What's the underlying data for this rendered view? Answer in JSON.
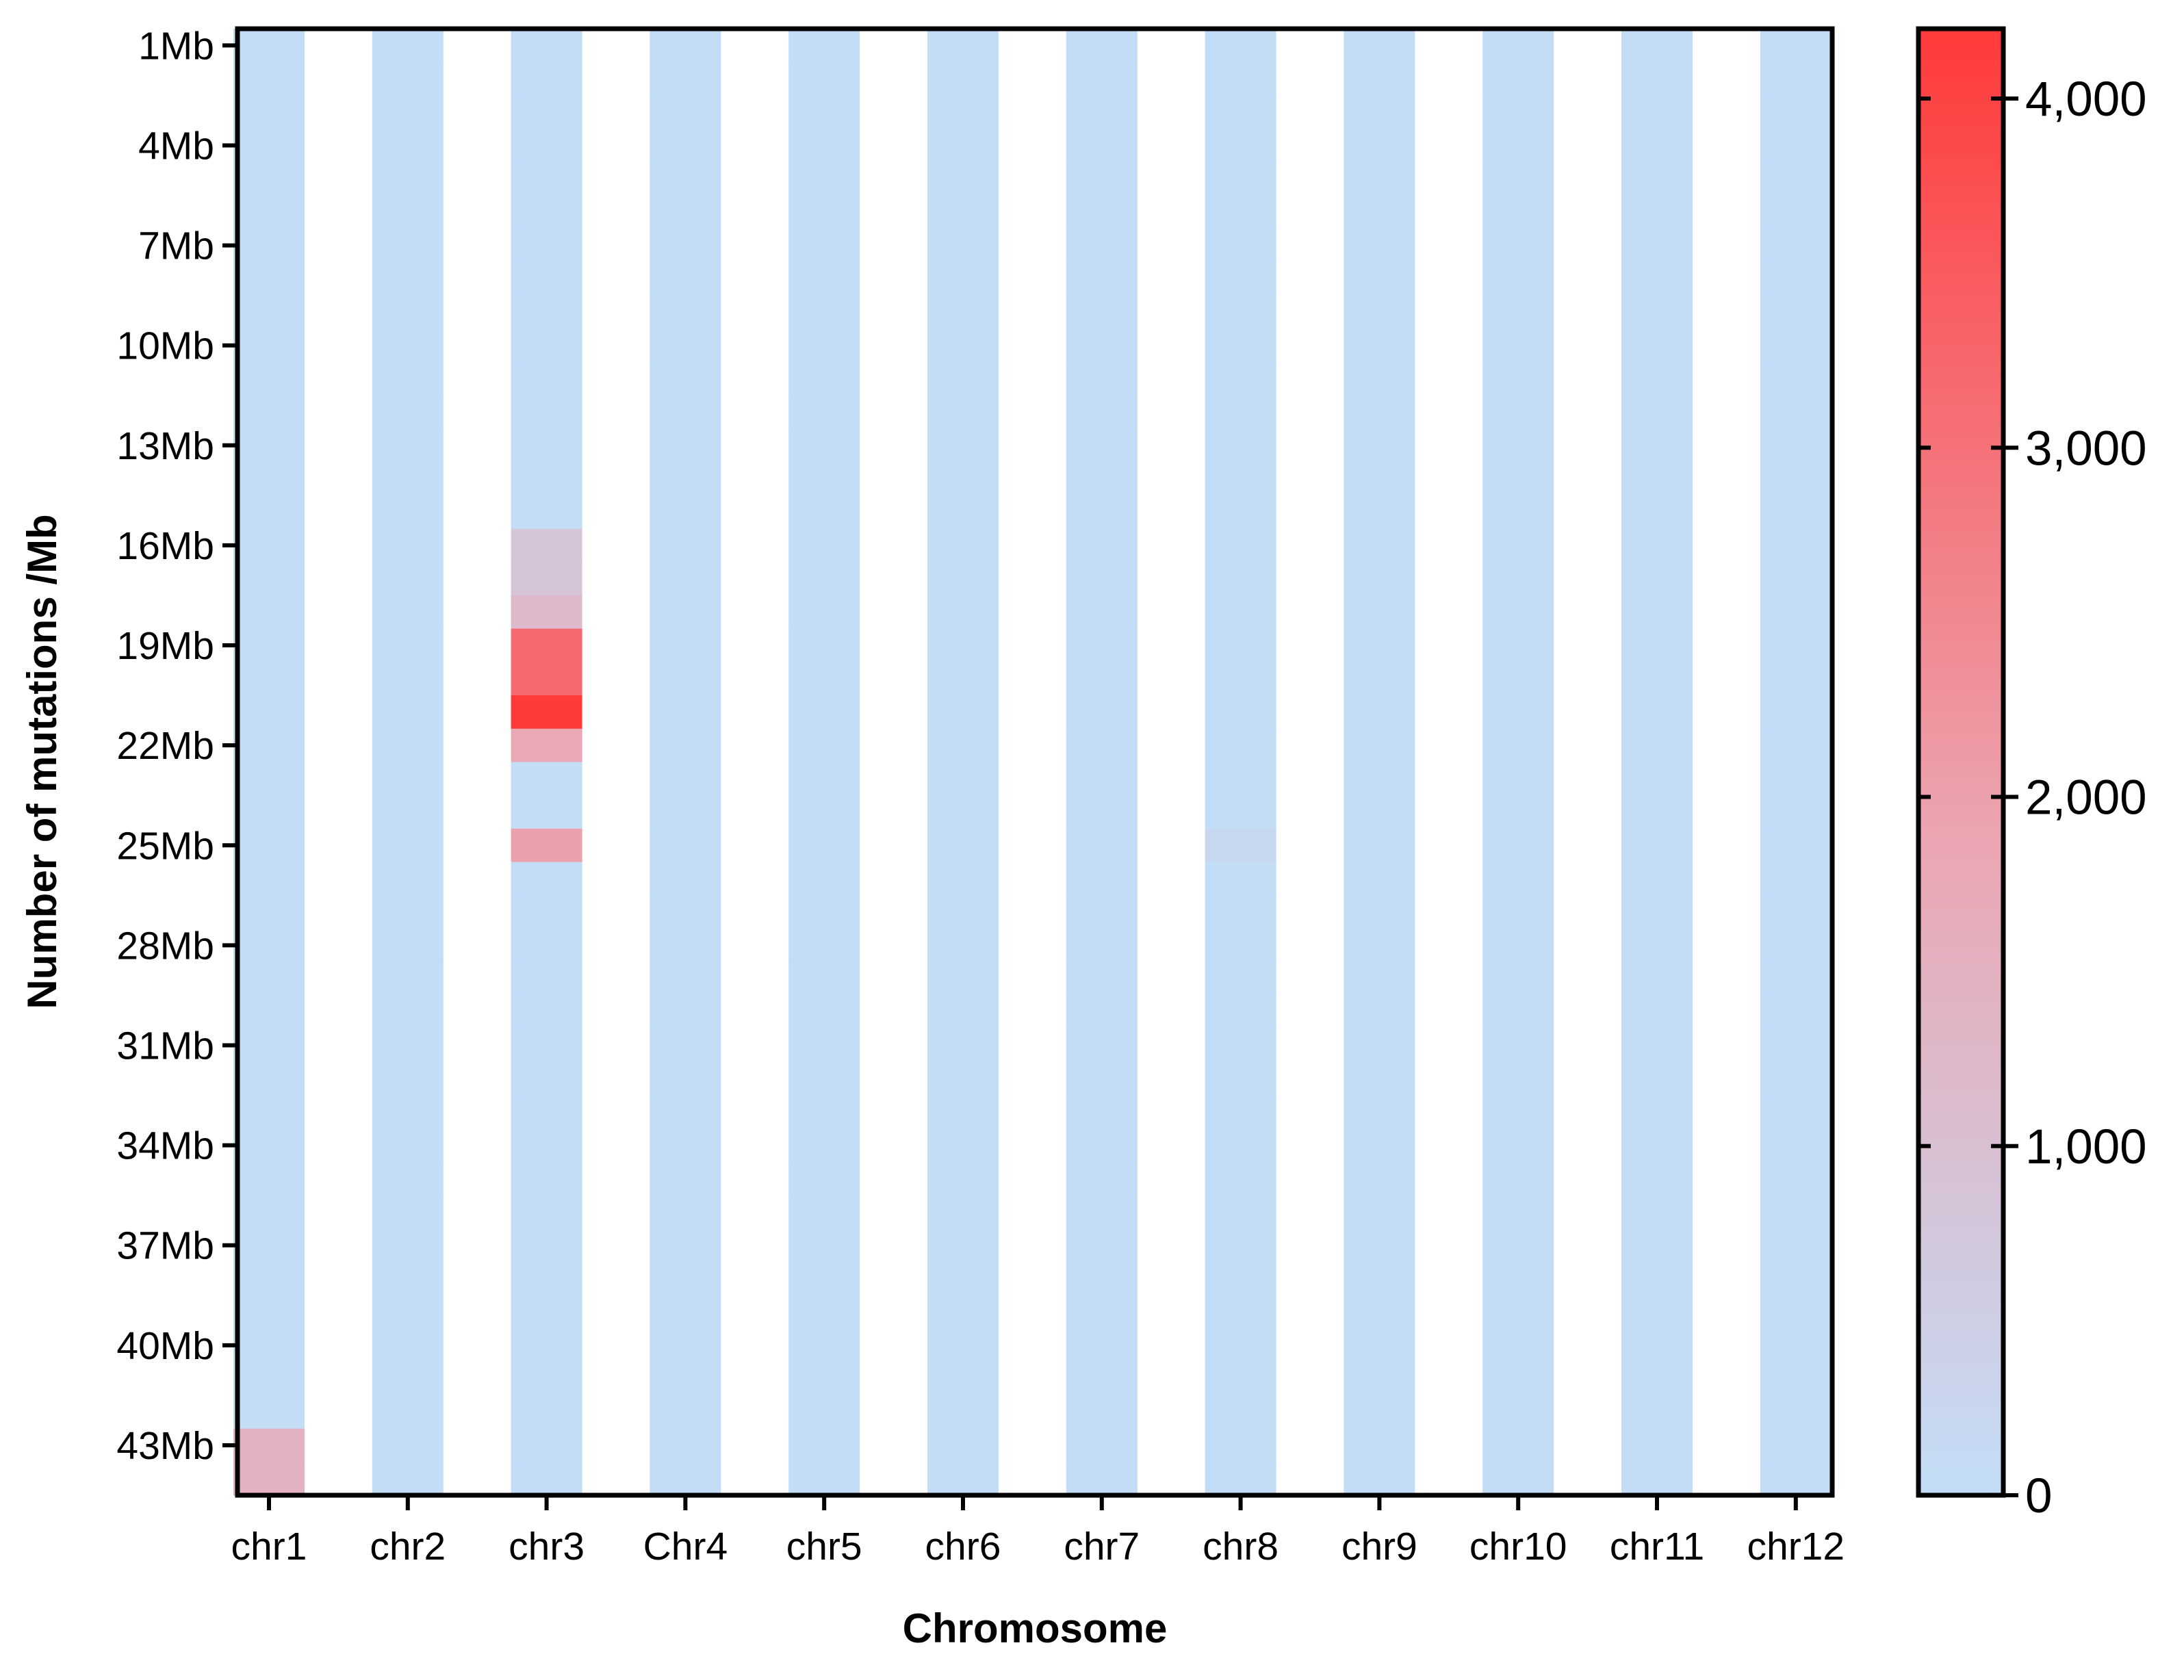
{
  "chart_data": {
    "type": "heatmap",
    "xlabel": "Chromosome",
    "ylabel": "Number of mutations /Mb",
    "x_categories": [
      "chr1",
      "chr2",
      "chr3",
      "Chr4",
      "chr5",
      "chr6",
      "chr7",
      "chr8",
      "chr9",
      "chr10",
      "chr11",
      "chr12"
    ],
    "y_categories": [
      "1Mb",
      "2Mb",
      "3Mb",
      "4Mb",
      "5Mb",
      "6Mb",
      "7Mb",
      "8Mb",
      "9Mb",
      "10Mb",
      "11Mb",
      "12Mb",
      "13Mb",
      "14Mb",
      "15Mb",
      "16Mb",
      "17Mb",
      "18Mb",
      "19Mb",
      "20Mb",
      "21Mb",
      "22Mb",
      "23Mb",
      "24Mb",
      "25Mb",
      "26Mb",
      "27Mb",
      "28Mb",
      "29Mb",
      "30Mb",
      "31Mb",
      "32Mb",
      "33Mb",
      "34Mb",
      "35Mb",
      "36Mb",
      "37Mb",
      "38Mb",
      "39Mb",
      "40Mb",
      "41Mb",
      "42Mb",
      "43Mb",
      "44Mb"
    ],
    "y_tick_labels": [
      "1Mb",
      "4Mb",
      "7Mb",
      "10Mb",
      "13Mb",
      "16Mb",
      "19Mb",
      "22Mb",
      "25Mb",
      "28Mb",
      "31Mb",
      "34Mb",
      "37Mb",
      "40Mb",
      "43Mb"
    ],
    "default_value": 0,
    "nonzero_cells": [
      {
        "chromosome": "chr1",
        "bin": "43Mb",
        "value": 1500
      },
      {
        "chromosome": "chr1",
        "bin": "44Mb",
        "value": 1500
      },
      {
        "chromosome": "chr3",
        "bin": "16Mb",
        "value": 800
      },
      {
        "chromosome": "chr3",
        "bin": "17Mb",
        "value": 850
      },
      {
        "chromosome": "chr3",
        "bin": "18Mb",
        "value": 1200
      },
      {
        "chromosome": "chr3",
        "bin": "19Mb",
        "value": 3200
      },
      {
        "chromosome": "chr3",
        "bin": "20Mb",
        "value": 3200
      },
      {
        "chromosome": "chr3",
        "bin": "21Mb",
        "value": 4200
      },
      {
        "chromosome": "chr3",
        "bin": "22Mb",
        "value": 1800
      },
      {
        "chromosome": "chr3",
        "bin": "25Mb",
        "value": 2000
      },
      {
        "chromosome": "chr8",
        "bin": "25Mb",
        "value": 200
      }
    ],
    "colorbar": {
      "min": 0,
      "max": 4200,
      "ticks": [
        0,
        1000,
        2000,
        3000,
        4000
      ],
      "tick_labels": [
        "0",
        "1,000",
        "2,000",
        "3,000",
        "4,000"
      ],
      "color_low": "#c3ddf7",
      "color_mid": "#eba5b1",
      "color_high": "#ff3a3a"
    },
    "grid": false,
    "legend": "colorbar-right"
  }
}
